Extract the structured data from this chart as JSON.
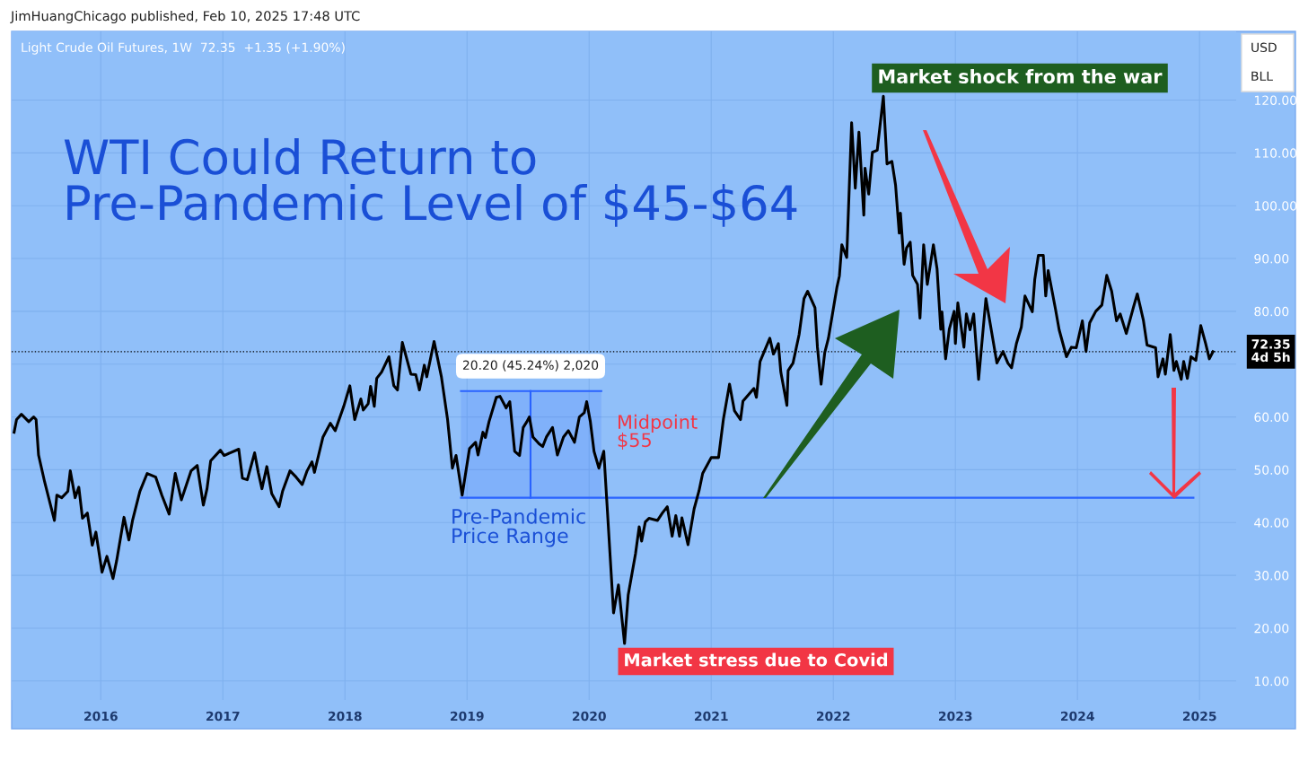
{
  "chart_data": {
    "type": "line",
    "title": "WTI Could Return to\nPre-Pandemic Level of $45-$64",
    "subtitle": "Light Crude Oil Futures, 1W  72.35  +1.35 (+1.90%)",
    "annotations": [
      "JimHuangChicago published, Feb 10, 2025 17:48 UTC",
      "USD",
      "BLL",
      "Market shock from the war",
      "Market stress due to Covid",
      "Midpoint\n$55",
      "Pre-Pandemic\nPrice Range",
      "20.20 (45.24%) 2,020"
    ],
    "xlim": [
      2015.27,
      2025.3
    ],
    "ylim": [
      6.4,
      133
    ],
    "xticks": [
      2016,
      2017,
      2018,
      2019,
      2020,
      2021,
      2022,
      2023,
      2024,
      2025
    ],
    "yticks": [
      {
        "value": 10,
        "label": "10.00"
      },
      {
        "value": 20,
        "label": "20.00"
      },
      {
        "value": 30,
        "label": "30.00"
      },
      {
        "value": 40,
        "label": "40.00"
      },
      {
        "value": 50,
        "label": "50.00"
      },
      {
        "value": 60,
        "label": "60.00"
      },
      {
        "value": 70,
        "label": null
      },
      {
        "value": 80,
        "label": "80.00"
      },
      {
        "value": 90,
        "label": "90.00"
      },
      {
        "value": 100,
        "label": "100.00"
      },
      {
        "value": 110,
        "label": "110.00"
      },
      {
        "value": 120,
        "label": "120.00"
      }
    ],
    "grid": true,
    "legend": false,
    "marker": "none",
    "line_style": "solid",
    "ref_lines": [
      {
        "axis": "y",
        "value": 72.35,
        "label": "72.35\n4d 5h",
        "color": "#000000",
        "line_style": "dotted"
      }
    ],
    "series": [
      {
        "color": "#000000",
        "x": [
          2015.29,
          2015.31,
          2015.35,
          2015.41,
          2015.45,
          2015.47,
          2015.49,
          2015.54,
          2015.62,
          2015.64,
          2015.68,
          2015.73,
          2015.75,
          2015.79,
          2015.82,
          2015.85,
          2015.89,
          2015.93,
          2015.96,
          2016.01,
          2016.05,
          2016.1,
          2016.13,
          2016.19,
          2016.23,
          2016.26,
          2016.32,
          2016.38,
          2016.45,
          2016.5,
          2016.56,
          2016.61,
          2016.66,
          2016.74,
          2016.79,
          2016.84,
          2016.87,
          2016.9,
          2016.98,
          2017.01,
          2017.13,
          2017.16,
          2017.2,
          2017.26,
          2017.29,
          2017.32,
          2017.36,
          2017.4,
          2017.46,
          2017.49,
          2017.55,
          2017.6,
          2017.65,
          2017.69,
          2017.73,
          2017.75,
          2017.82,
          2017.88,
          2017.92,
          2017.99,
          2018.04,
          2018.08,
          2018.13,
          2018.15,
          2018.19,
          2018.21,
          2018.24,
          2018.26,
          2018.3,
          2018.36,
          2018.4,
          2018.43,
          2018.47,
          2018.54,
          2018.58,
          2018.61,
          2018.65,
          2018.67,
          2018.73,
          2018.79,
          2018.84,
          2018.88,
          2018.91,
          2018.96,
          2019.02,
          2019.07,
          2019.09,
          2019.13,
          2019.15,
          2019.18,
          2019.24,
          2019.27,
          2019.32,
          2019.35,
          2019.39,
          2019.43,
          2019.46,
          2019.49,
          2019.51,
          2019.54,
          2019.59,
          2019.62,
          2019.65,
          2019.7,
          2019.74,
          2019.79,
          2019.83,
          2019.88,
          2019.92,
          2019.96,
          2019.98,
          2020.01,
          2020.04,
          2020.08,
          2020.12,
          2020.15,
          2020.2,
          2020.24,
          2020.29,
          2020.32,
          2020.38,
          2020.41,
          2020.43,
          2020.46,
          2020.49,
          2020.56,
          2020.6,
          2020.64,
          2020.68,
          2020.71,
          2020.74,
          2020.76,
          2020.81,
          2020.86,
          2020.9,
          2020.93,
          2021.0,
          2021.06,
          2021.1,
          2021.15,
          2021.19,
          2021.24,
          2021.26,
          2021.35,
          2021.37,
          2021.4,
          2021.48,
          2021.51,
          2021.55,
          2021.57,
          2021.62,
          2021.63,
          2021.67,
          2021.72,
          2021.76,
          2021.79,
          2021.85,
          2021.87,
          2021.9,
          2021.93,
          2021.96,
          2022.03,
          2022.05,
          2022.07,
          2022.11,
          2022.15,
          2022.18,
          2022.21,
          2022.25,
          2022.26,
          2022.29,
          2022.32,
          2022.36,
          2022.41,
          2022.44,
          2022.48,
          2022.51,
          2022.54,
          2022.55,
          2022.58,
          2022.6,
          2022.63,
          2022.65,
          2022.69,
          2022.71,
          2022.74,
          2022.77,
          2022.82,
          2022.85,
          2022.88,
          2022.89,
          2022.92,
          2022.95,
          2022.99,
          2023.0,
          2023.02,
          2023.07,
          2023.09,
          2023.12,
          2023.15,
          2023.19,
          2023.25,
          2023.29,
          2023.34,
          2023.39,
          2023.43,
          2023.46,
          2023.5,
          2023.54,
          2023.57,
          2023.63,
          2023.65,
          2023.68,
          2023.72,
          2023.74,
          2023.76,
          2023.82,
          2023.85,
          2023.91,
          2023.95,
          2023.99,
          2024.04,
          2024.07,
          2024.1,
          2024.15,
          2024.2,
          2024.24,
          2024.28,
          2024.32,
          2024.35,
          2024.4,
          2024.46,
          2024.49,
          2024.54,
          2024.57,
          2024.64,
          2024.66,
          2024.7,
          2024.72,
          2024.76,
          2024.79,
          2024.81,
          2024.85,
          2024.87,
          2024.9,
          2024.93,
          2024.97,
          2025.01,
          2025.05,
          2025.08,
          2025.11
        ],
        "values": [
          57.1,
          59.5,
          60.5,
          59.1,
          60.0,
          59.5,
          52.8,
          47.7,
          40.4,
          45.2,
          44.7,
          45.9,
          49.8,
          44.7,
          46.7,
          40.8,
          41.8,
          35.7,
          38.2,
          30.6,
          33.6,
          29.4,
          32.8,
          41.0,
          36.7,
          40.4,
          45.9,
          49.3,
          48.6,
          45.2,
          41.6,
          49.3,
          44.3,
          49.8,
          50.8,
          43.3,
          46.4,
          51.7,
          53.7,
          52.7,
          53.9,
          48.4,
          48.1,
          53.2,
          49.5,
          46.4,
          50.6,
          45.5,
          43.0,
          46.0,
          49.8,
          48.6,
          47.2,
          49.8,
          51.5,
          49.5,
          56.2,
          58.8,
          57.4,
          62.0,
          65.9,
          59.5,
          63.4,
          61.3,
          62.5,
          65.8,
          62.0,
          67.3,
          68.5,
          71.4,
          65.9,
          65.1,
          74.1,
          68.1,
          68.0,
          65.1,
          69.8,
          67.6,
          74.3,
          67.6,
          59.6,
          50.3,
          52.7,
          45.2,
          54.0,
          55.2,
          52.8,
          57.1,
          56.1,
          59.1,
          63.7,
          63.9,
          61.7,
          62.9,
          53.5,
          52.7,
          58.0,
          59.1,
          60.0,
          56.2,
          54.9,
          54.4,
          56.2,
          58.0,
          52.8,
          56.2,
          57.4,
          55.2,
          60.0,
          60.8,
          62.9,
          59.1,
          53.5,
          50.3,
          53.5,
          42.1,
          22.9,
          28.2,
          17.1,
          26.3,
          34.1,
          39.2,
          36.5,
          40.1,
          40.8,
          40.4,
          41.8,
          43.0,
          37.4,
          41.3,
          37.4,
          40.9,
          35.8,
          42.6,
          46.0,
          49.3,
          52.3,
          52.3,
          59.6,
          66.2,
          61.2,
          59.5,
          63.0,
          65.4,
          63.7,
          70.5,
          74.9,
          71.9,
          73.9,
          68.5,
          62.2,
          68.8,
          70.2,
          75.6,
          82.4,
          83.8,
          80.7,
          73.2,
          66.2,
          72.2,
          74.9,
          84.6,
          86.7,
          92.6,
          90.2,
          115.7,
          103.3,
          113.9,
          98.2,
          107.1,
          102.2,
          110.1,
          110.5,
          120.7,
          107.9,
          108.4,
          103.9,
          94.8,
          98.6,
          88.9,
          92.0,
          93.1,
          86.8,
          85.1,
          78.7,
          92.6,
          85.1,
          92.6,
          88.0,
          76.6,
          79.9,
          71.0,
          76.6,
          80.0,
          73.9,
          81.6,
          73.2,
          79.5,
          76.5,
          79.5,
          67.1,
          82.4,
          77.0,
          70.2,
          72.4,
          70.2,
          69.3,
          73.9,
          77.0,
          82.9,
          79.9,
          86.0,
          90.6,
          90.6,
          82.9,
          87.7,
          80.4,
          76.5,
          71.4,
          73.2,
          73.1,
          78.2,
          72.4,
          77.8,
          80.0,
          81.2,
          86.8,
          83.8,
          78.2,
          79.5,
          75.8,
          80.9,
          83.3,
          78.3,
          73.6,
          73.1,
          67.6,
          71.0,
          68.1,
          75.6,
          68.8,
          70.5,
          67.1,
          70.5,
          67.3,
          71.4,
          70.7,
          77.3,
          73.9,
          71.0,
          72.35
        ]
      },
      {
        "color": "#2962ff",
        "x": [
          2018.95,
          2024.95
        ],
        "values": [
          44.7,
          44.7
        ]
      },
      {
        "color": "#2962ff",
        "x": [
          2018.95,
          2020.1
        ],
        "values": [
          64.9,
          64.9
        ],
        "lower": [
          44.7,
          44.7
        ],
        "upper": [
          64.9,
          64.9
        ]
      },
      {
        "color": "#2962ff",
        "x": [
          2019.52,
          2019.52
        ],
        "values": [
          44.7,
          64.9
        ]
      }
    ]
  }
}
